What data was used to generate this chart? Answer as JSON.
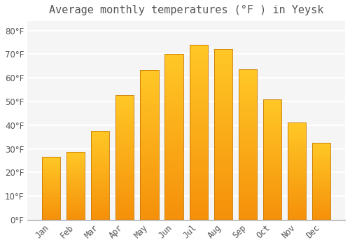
{
  "title": "Average monthly temperatures (°F ) in Yeysk",
  "months": [
    "Jan",
    "Feb",
    "Mar",
    "Apr",
    "May",
    "Jun",
    "Jul",
    "Aug",
    "Sep",
    "Oct",
    "Nov",
    "Dec"
  ],
  "values": [
    26.5,
    28.8,
    37.5,
    52.7,
    63.3,
    70.0,
    74.0,
    72.3,
    63.7,
    51.0,
    41.0,
    32.4
  ],
  "bar_color_top": "#FFC726",
  "bar_color_bottom": "#F5900A",
  "bar_edge_color": "#C87800",
  "background_color": "#FFFFFF",
  "plot_bg_color": "#F5F5F5",
  "grid_color": "#FFFFFF",
  "text_color": "#555555",
  "ylim": [
    0,
    84
  ],
  "yticks": [
    0,
    10,
    20,
    30,
    40,
    50,
    60,
    70,
    80
  ],
  "title_fontsize": 11,
  "tick_fontsize": 8.5
}
